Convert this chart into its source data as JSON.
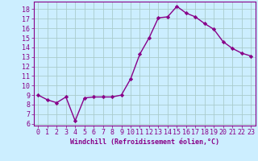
{
  "x": [
    0,
    1,
    2,
    3,
    4,
    5,
    6,
    7,
    8,
    9,
    10,
    11,
    12,
    13,
    14,
    15,
    16,
    17,
    18,
    19,
    20,
    21,
    22,
    23
  ],
  "y": [
    9.0,
    8.5,
    8.2,
    8.8,
    6.3,
    8.7,
    8.8,
    8.8,
    8.8,
    9.0,
    10.7,
    13.3,
    15.0,
    17.1,
    17.2,
    18.3,
    17.6,
    17.2,
    16.5,
    15.9,
    14.6,
    13.9,
    13.4,
    13.1
  ],
  "line_color": "#880088",
  "marker": "D",
  "marker_size": 2.2,
  "linewidth": 1.0,
  "bg_color": "#cceeff",
  "grid_color": "#aacccc",
  "xlabel": "Windchill (Refroidissement éolien,°C)",
  "ylabel_ticks": [
    6,
    7,
    8,
    9,
    10,
    11,
    12,
    13,
    14,
    15,
    16,
    17,
    18
  ],
  "xlim": [
    -0.5,
    23.5
  ],
  "ylim": [
    5.8,
    18.8
  ],
  "xlabel_fontsize": 6.0,
  "tick_fontsize": 6.0,
  "tick_color": "#880088",
  "label_color": "#880088"
}
